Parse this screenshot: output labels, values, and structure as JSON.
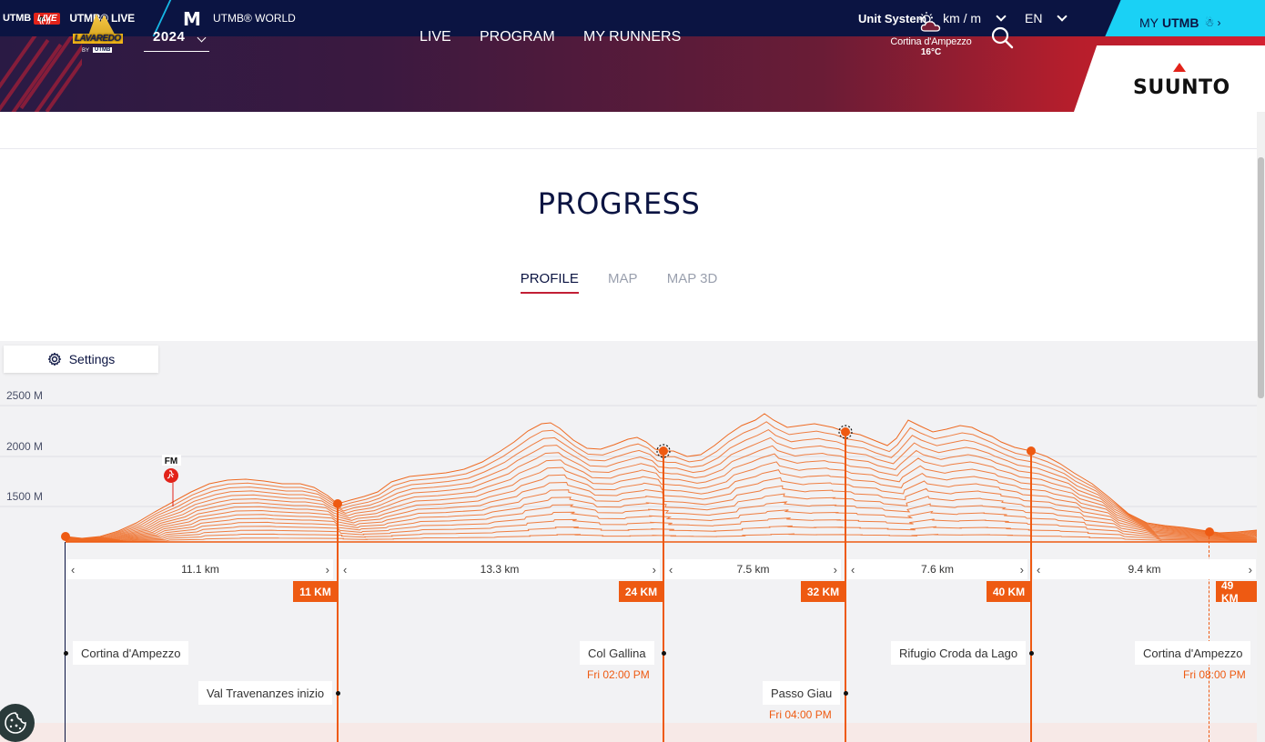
{
  "topbar": {
    "utmb_short": "UTMB",
    "live_badge": "LIVE",
    "utmb_live_label": "UTMB® LIVE",
    "world_label": "UTMB® WORLD",
    "unit_system_label": "Unit System :",
    "unit_system_value": "km / m",
    "language": "EN",
    "my_utmb_prefix": "MY",
    "my_utmb_brand": "UTMB"
  },
  "event": {
    "logo_text": "LAVAREDO",
    "logo_by": "BY",
    "logo_utmb": "UTMB",
    "year": "2024",
    "nav": [
      "LIVE",
      "PROGRAM",
      "MY RUNNERS"
    ],
    "weather_city": "Cortina d'Ampezzo",
    "weather_temp": "16°C",
    "sponsor": "SUUNTO"
  },
  "page": {
    "section_title": "PROGRESS",
    "tabs": [
      "PROFILE",
      "MAP",
      "MAP 3D"
    ],
    "active_tab": "PROFILE",
    "settings_label": "Settings"
  },
  "profile": {
    "y_labels": [
      "2500 M",
      "2000 M",
      "1500 M"
    ],
    "runner_marker": "FM",
    "segments": [
      "11.1 km",
      "13.3 km",
      "7.5 km",
      "7.6 km",
      "9.4 km"
    ],
    "checkpoints_km": [
      "11 KM",
      "24 KM",
      "32 KM",
      "40 KM",
      "49 KM"
    ],
    "places": [
      {
        "name": "Cortina d'Ampezzo",
        "time": ""
      },
      {
        "name": "Val Travenanzes inizio",
        "time": ""
      },
      {
        "name": "Col Gallina",
        "time": "Fri 02:00 PM"
      },
      {
        "name": "Passo Giau",
        "time": "Fri 04:00 PM"
      },
      {
        "name": "Rifugio Croda da Lago",
        "time": ""
      },
      {
        "name": "Cortina d'Ampezzo",
        "time": "Fri 08:00 PM"
      }
    ],
    "accent_color": "#ee5a12"
  }
}
